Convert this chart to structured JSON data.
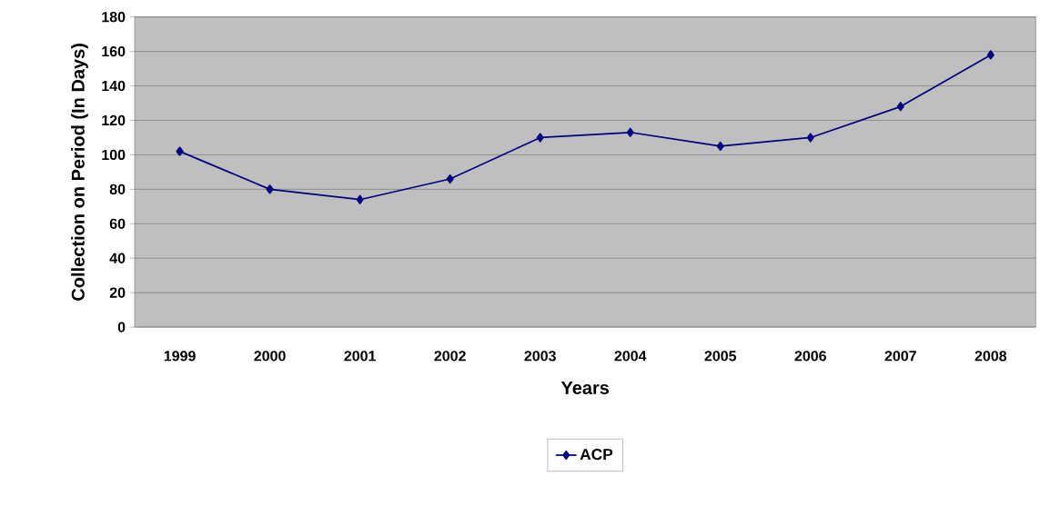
{
  "chart_data": {
    "type": "line",
    "xlabel": "Years",
    "ylabel": "Collection on Period (In Days)",
    "categories": [
      "1999",
      "2000",
      "2001",
      "2002",
      "2003",
      "2004",
      "2005",
      "2006",
      "2007",
      "2008"
    ],
    "series": [
      {
        "name": "ACP",
        "color": "#000080",
        "values": [
          102,
          80,
          74,
          86,
          110,
          113,
          105,
          110,
          128,
          158
        ]
      }
    ],
    "ylim": [
      0,
      180
    ],
    "yticks": [
      0,
      20,
      40,
      60,
      80,
      100,
      120,
      140,
      160,
      180
    ],
    "grid": "y",
    "legend": "bottom",
    "marker": "diamond",
    "line_style": "solid"
  }
}
